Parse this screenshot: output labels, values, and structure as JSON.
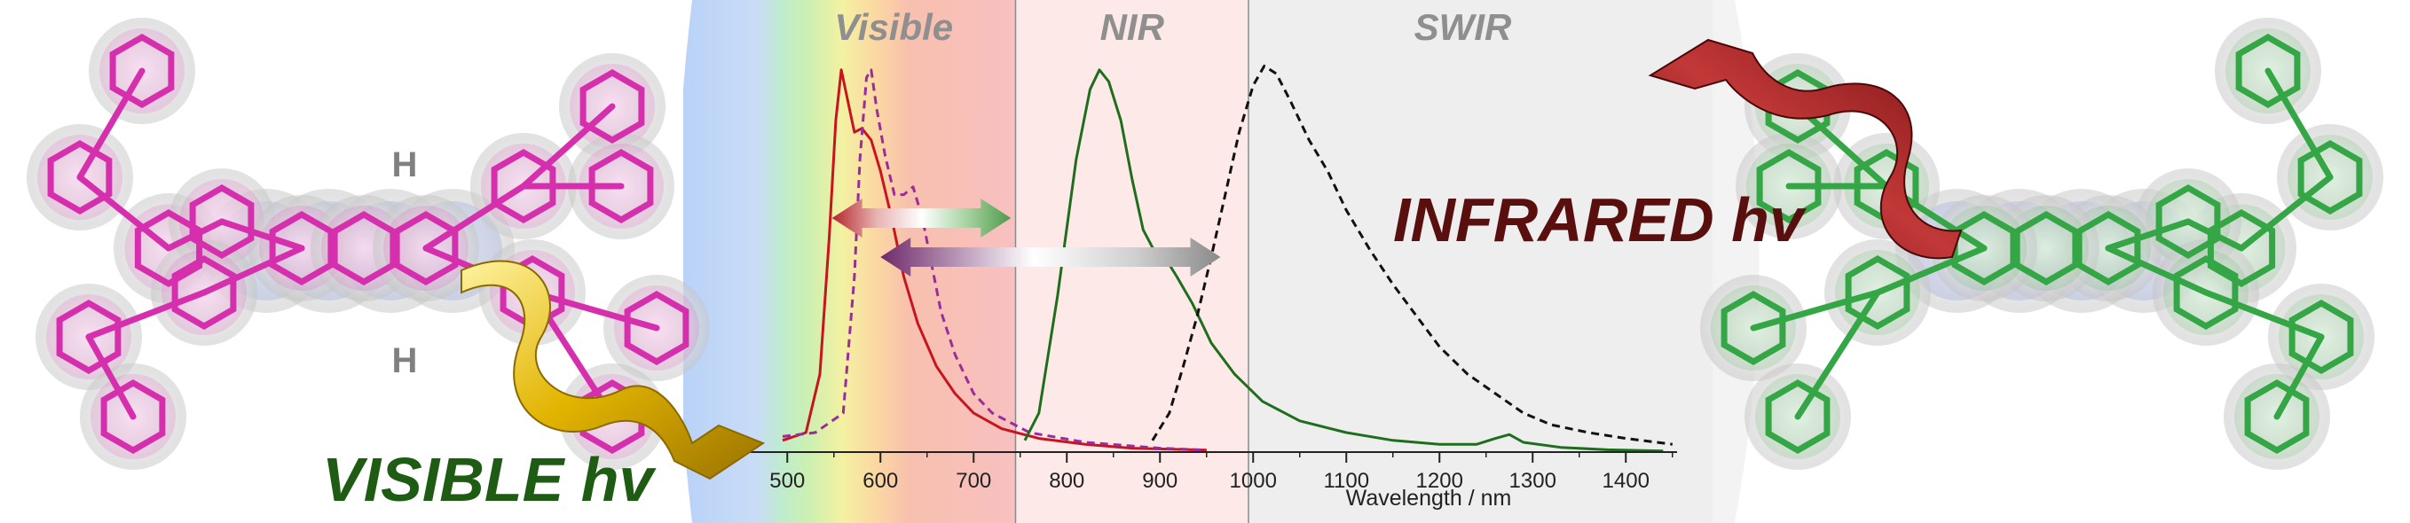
{
  "labels": {
    "visible_hv": "VISIBLE hv",
    "infrared_hv": "INFRARED hv",
    "h_top": "H",
    "h_bottom": "H"
  },
  "colors": {
    "visible_label": "#1e5c14",
    "infrared_label": "#5a0f0f",
    "pink_molecule": "#d62fae",
    "green_molecule": "#35a645",
    "blue_core": "#3a57d8",
    "red_series": "#c8141e",
    "purple_series": "#9a2c9c",
    "green_series": "#1e6e1e",
    "black_series": "#111111"
  },
  "chart_data": {
    "type": "line",
    "xlabel": "Wavelength / nm",
    "ylabel": "",
    "xlim": [
      455,
      1455
    ],
    "ylim": [
      0,
      1.0
    ],
    "xticks": [
      500,
      600,
      700,
      800,
      900,
      1000,
      1100,
      1200,
      1300,
      1400
    ],
    "regions": [
      {
        "label": "Visible",
        "from": 455,
        "to": 745
      },
      {
        "label": "NIR",
        "from": 745,
        "to": 995
      },
      {
        "label": "SWIR",
        "from": 995,
        "to": 1455
      }
    ],
    "region_dividers": [
      745,
      995
    ],
    "series": [
      {
        "style": "solid",
        "color": "#c8141e",
        "points": [
          [
            495,
            0.03
          ],
          [
            520,
            0.05
          ],
          [
            535,
            0.2
          ],
          [
            545,
            0.55
          ],
          [
            552,
            0.85
          ],
          [
            558,
            0.98
          ],
          [
            565,
            0.9
          ],
          [
            572,
            0.82
          ],
          [
            580,
            0.83
          ],
          [
            590,
            0.8
          ],
          [
            600,
            0.72
          ],
          [
            612,
            0.6
          ],
          [
            625,
            0.45
          ],
          [
            640,
            0.33
          ],
          [
            660,
            0.22
          ],
          [
            680,
            0.15
          ],
          [
            700,
            0.1
          ],
          [
            730,
            0.06
          ],
          [
            770,
            0.035
          ],
          [
            820,
            0.02
          ],
          [
            870,
            0.01
          ],
          [
            950,
            0.005
          ]
        ]
      },
      {
        "style": "dashed",
        "color": "#9a2c9c",
        "points": [
          [
            495,
            0.04
          ],
          [
            530,
            0.05
          ],
          [
            560,
            0.1
          ],
          [
            572,
            0.45
          ],
          [
            578,
            0.75
          ],
          [
            585,
            0.96
          ],
          [
            590,
            0.98
          ],
          [
            596,
            0.88
          ],
          [
            605,
            0.76
          ],
          [
            615,
            0.66
          ],
          [
            625,
            0.66
          ],
          [
            635,
            0.68
          ],
          [
            645,
            0.6
          ],
          [
            655,
            0.48
          ],
          [
            665,
            0.36
          ],
          [
            680,
            0.25
          ],
          [
            700,
            0.15
          ],
          [
            720,
            0.1
          ],
          [
            760,
            0.05
          ],
          [
            820,
            0.025
          ],
          [
            900,
            0.01
          ],
          [
            950,
            0.005
          ]
        ]
      },
      {
        "style": "solid",
        "color": "#1e6e1e",
        "points": [
          [
            755,
            0.03
          ],
          [
            770,
            0.1
          ],
          [
            790,
            0.4
          ],
          [
            810,
            0.75
          ],
          [
            825,
            0.93
          ],
          [
            835,
            0.98
          ],
          [
            845,
            0.95
          ],
          [
            858,
            0.85
          ],
          [
            870,
            0.7
          ],
          [
            882,
            0.57
          ],
          [
            893,
            0.52
          ],
          [
            905,
            0.5
          ],
          [
            918,
            0.45
          ],
          [
            935,
            0.38
          ],
          [
            955,
            0.28
          ],
          [
            980,
            0.2
          ],
          [
            1010,
            0.13
          ],
          [
            1050,
            0.08
          ],
          [
            1100,
            0.05
          ],
          [
            1150,
            0.03
          ],
          [
            1200,
            0.02
          ],
          [
            1240,
            0.02
          ],
          [
            1260,
            0.035
          ],
          [
            1275,
            0.045
          ],
          [
            1290,
            0.025
          ],
          [
            1330,
            0.012
          ],
          [
            1380,
            0.006
          ],
          [
            1440,
            0.003
          ]
        ]
      },
      {
        "style": "dashed",
        "color": "#111111",
        "points": [
          [
            892,
            0.03
          ],
          [
            910,
            0.1
          ],
          [
            925,
            0.22
          ],
          [
            940,
            0.35
          ],
          [
            955,
            0.5
          ],
          [
            970,
            0.66
          ],
          [
            985,
            0.82
          ],
          [
            1000,
            0.94
          ],
          [
            1012,
            0.99
          ],
          [
            1025,
            0.97
          ],
          [
            1040,
            0.9
          ],
          [
            1060,
            0.8
          ],
          [
            1080,
            0.72
          ],
          [
            1100,
            0.62
          ],
          [
            1125,
            0.52
          ],
          [
            1150,
            0.43
          ],
          [
            1175,
            0.35
          ],
          [
            1200,
            0.27
          ],
          [
            1230,
            0.2
          ],
          [
            1260,
            0.15
          ],
          [
            1290,
            0.1
          ],
          [
            1320,
            0.07
          ],
          [
            1360,
            0.05
          ],
          [
            1400,
            0.035
          ],
          [
            1450,
            0.02
          ]
        ]
      }
    ],
    "arrows": [
      {
        "from": 548,
        "to": 740,
        "level": 0.6
      },
      {
        "from": 600,
        "to": 965,
        "level": 0.5
      }
    ]
  }
}
